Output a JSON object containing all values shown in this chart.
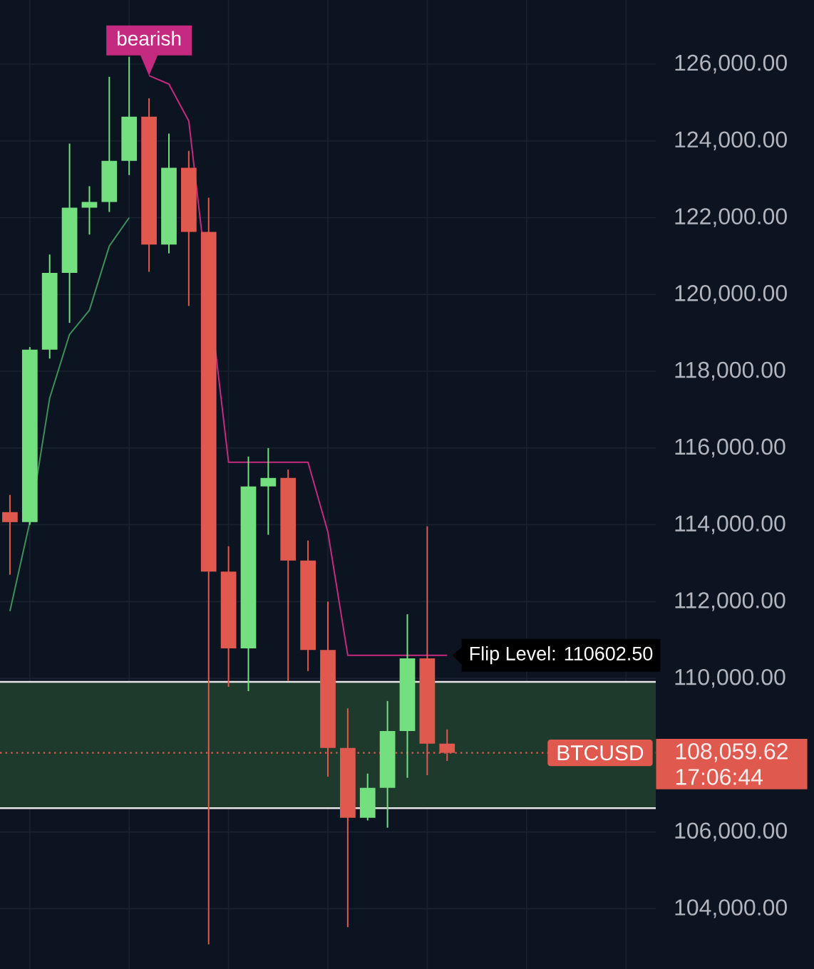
{
  "chart_data": {
    "type": "candlestick",
    "categories": [
      null,
      null,
      null,
      null,
      null,
      null,
      null,
      null,
      null,
      null,
      null,
      null,
      null,
      null,
      null,
      null,
      null,
      null,
      null,
      null,
      null,
      null,
      null,
      null,
      null,
      null,
      null,
      null,
      null,
      null,
      null,
      null,
      null
    ],
    "ohlc": [
      [
        114330,
        114780,
        112700,
        114070
      ],
      [
        114070,
        118630,
        114000,
        118560
      ],
      [
        118560,
        121040,
        118330,
        120560
      ],
      [
        120560,
        123930,
        119260,
        122260
      ],
      [
        122260,
        122820,
        121560,
        122410
      ],
      [
        122410,
        125670,
        122150,
        123480
      ],
      [
        123480,
        126190,
        123110,
        124630
      ],
      [
        124630,
        125110,
        120590,
        121300
      ],
      [
        121300,
        124190,
        121070,
        123300
      ],
      [
        123300,
        123740,
        119700,
        121630
      ],
      [
        121630,
        122520,
        103070,
        112780
      ],
      [
        112780,
        113440,
        109780,
        110780
      ],
      [
        110780,
        115780,
        109670,
        115000
      ],
      [
        115000,
        116000,
        113740,
        115220
      ],
      [
        115220,
        115440,
        109930,
        113070
      ],
      [
        113070,
        113590,
        110190,
        110740
      ],
      [
        110740,
        112000,
        107440,
        108190
      ],
      [
        108190,
        109220,
        103520,
        106370
      ],
      [
        106370,
        107520,
        106300,
        107150
      ],
      [
        107150,
        109410,
        106110,
        108630
      ],
      [
        108630,
        111670,
        107410,
        110520
      ],
      [
        110520,
        113960,
        107480,
        108300
      ],
      [
        108300,
        108670,
        107850,
        108059.62
      ],
      null,
      null,
      null,
      null,
      null,
      null,
      null,
      null,
      null,
      null
    ],
    "colors": [
      "#e0594f",
      "#74df7e",
      "#74df7e",
      "#74df7e",
      "#74df7e",
      "#74df7e",
      "#74df7e",
      "#e0594f",
      "#74df7e",
      "#e0594f",
      "#e0594f",
      "#e0594f",
      "#74df7e",
      "#74df7e",
      "#e0594f",
      "#e0594f",
      "#e0594f",
      "#e0594f",
      "#74df7e",
      "#74df7e",
      "#74df7e",
      "#e0594f",
      "#e0594f",
      null,
      null,
      null,
      null,
      null,
      null,
      null,
      null,
      null,
      null
    ],
    "series": [
      {
        "type": "line",
        "color": "#3f8f58",
        "values": [
          111750,
          114070,
          117300,
          118960,
          119590,
          121260,
          122000,
          null,
          null,
          null,
          null,
          null,
          null,
          null,
          null,
          null,
          null,
          null,
          null,
          null,
          null,
          null,
          null,
          null,
          null,
          null,
          null,
          null,
          null,
          null,
          null,
          null,
          null
        ]
      },
      {
        "type": "line",
        "color": "#c42a7f",
        "values": [
          null,
          null,
          null,
          null,
          null,
          null,
          null,
          125700,
          125480,
          124520,
          null,
          115630,
          115630,
          115630,
          115630,
          115630,
          113810,
          110602.5,
          110602.5,
          110602.5,
          110602.5,
          110602.5,
          110602.5,
          null,
          null,
          null,
          null,
          null,
          null,
          null,
          null,
          null,
          null
        ]
      }
    ],
    "ylim": [
      102430,
      127670
    ],
    "yticks": [
      {
        "value": 104000,
        "label": "104,000.00"
      },
      {
        "value": 106000,
        "label": "106,000.00"
      },
      {
        "value": 110000,
        "label": "110,000.00"
      },
      {
        "value": 112000,
        "label": "112,000.00"
      },
      {
        "value": 114000,
        "label": "114,000.00"
      },
      {
        "value": 116000,
        "label": "116,000.00"
      },
      {
        "value": 118000,
        "label": "118,000.00"
      },
      {
        "value": 120000,
        "label": "120,000.00"
      },
      {
        "value": 122000,
        "label": "122,000.00"
      },
      {
        "value": 124000,
        "label": "124,000.00"
      },
      {
        "value": 126000,
        "label": "126,000.00"
      }
    ],
    "grid": true,
    "bands": [
      {
        "axis": "y",
        "from": 106620,
        "to": 109910,
        "color": "#1e3a2c"
      }
    ],
    "ref_lines": [
      {
        "axis": "y",
        "value": 108059.62,
        "label": "BTCUSD",
        "color": "#e0594f",
        "line_style": "dotted"
      },
      {
        "axis": "y",
        "value": 109910,
        "color": "#e6e6e6",
        "line_style": "solid"
      },
      {
        "axis": "y",
        "value": 106620,
        "color": "#e6e6e6",
        "line_style": "solid"
      }
    ],
    "annotations": [
      {
        "text": "bearish",
        "y": 125700
      },
      "Flip Level: 110602.50",
      "108,059.62",
      "17:06:44"
    ]
  }
}
